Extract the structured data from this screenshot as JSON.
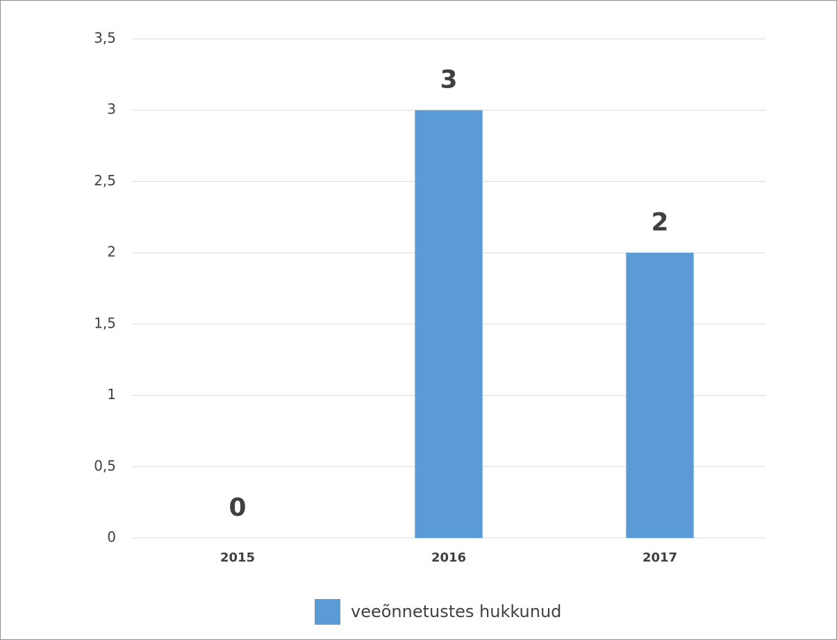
{
  "chart_data": {
    "type": "bar",
    "categories": [
      "2015",
      "2016",
      "2017"
    ],
    "series": [
      {
        "name": "veeõnnetustes hukkunud",
        "color": "#5b9bd5",
        "values": [
          0,
          3,
          2
        ]
      }
    ],
    "ylim": [
      0,
      3.5
    ],
    "yticks": [
      0,
      {
        "value": 0.5,
        "label": "0,5"
      },
      1,
      {
        "value": 1.5,
        "label": "1,5"
      },
      2,
      {
        "value": 2.5,
        "label": "2,5"
      },
      3,
      {
        "value": 3.5,
        "label": "3,5"
      }
    ],
    "grid": true,
    "legend": "bottom"
  }
}
